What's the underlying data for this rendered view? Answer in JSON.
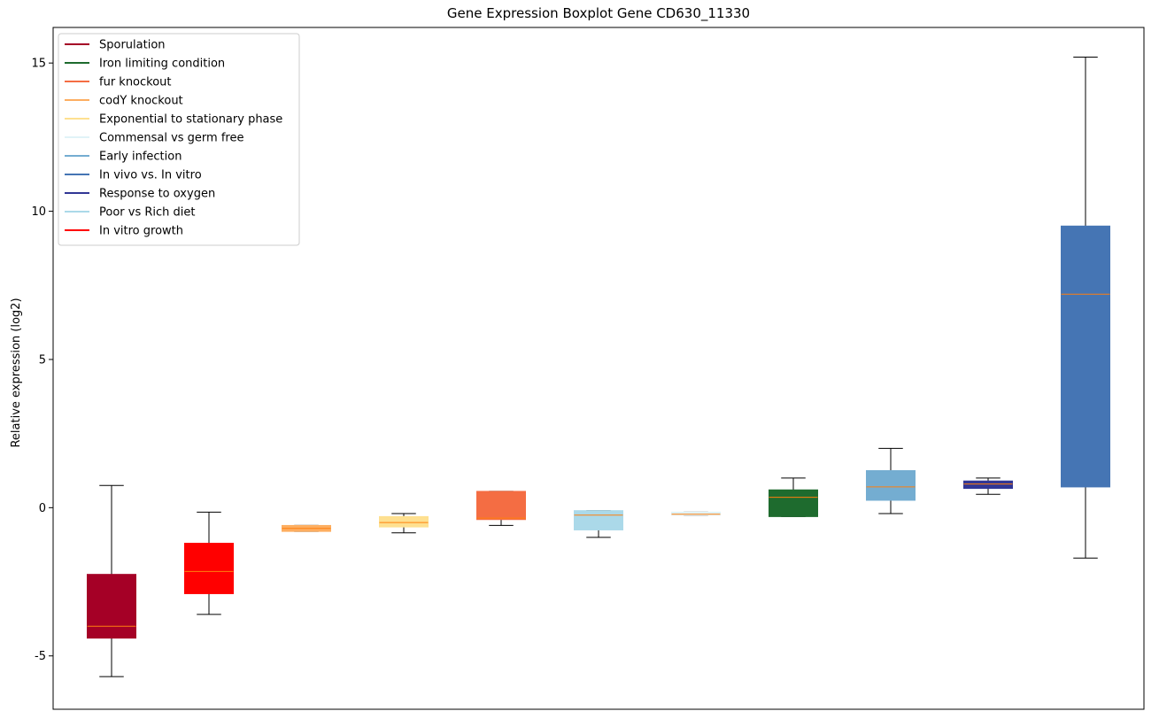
{
  "chart_data": {
    "type": "boxplot",
    "title": "Gene Expression Boxplot Gene CD630_11330",
    "xlabel": "",
    "ylabel": "Relative expression (log2)",
    "ylim": [
      -6.8,
      16.2
    ],
    "yticks": [
      -5,
      0,
      5,
      10,
      15
    ],
    "grid": false,
    "legend_position": "top-left",
    "legend": [
      {
        "label": "Sporulation",
        "color": "#a50026"
      },
      {
        "label": "Iron limiting condition",
        "color": "#1e6b2e"
      },
      {
        "label": "fur knockout",
        "color": "#f46d43"
      },
      {
        "label": "codY knockout",
        "color": "#fdae61"
      },
      {
        "label": "Exponential to stationary phase",
        "color": "#fee090"
      },
      {
        "label": "Commensal vs germ free",
        "color": "#e0f3f8"
      },
      {
        "label": "Early infection",
        "color": "#74add1"
      },
      {
        "label": "In vivo vs. In vitro",
        "color": "#4575b4"
      },
      {
        "label": "Response to oxygen",
        "color": "#313695"
      },
      {
        "label": "Poor vs Rich diet",
        "color": "#abd9e9"
      },
      {
        "label": "In vitro growth",
        "color": "#ff0000"
      }
    ],
    "boxes": [
      {
        "series": "Sporulation",
        "color": "#a50026",
        "whislo": -5.7,
        "q1": -4.4,
        "med": -4.0,
        "q3": -2.25,
        "whishi": 0.75
      },
      {
        "series": "In vitro growth",
        "color": "#ff0000",
        "whislo": -3.6,
        "q1": -2.9,
        "med": -2.15,
        "q3": -1.2,
        "whishi": -0.15
      },
      {
        "series": "codY knockout",
        "color": "#fdae61",
        "whislo": -0.8,
        "q1": -0.8,
        "med": -0.7,
        "q3": -0.6,
        "whishi": -0.6
      },
      {
        "series": "Exponential to stationary phase",
        "color": "#fee090",
        "whislo": -0.85,
        "q1": -0.65,
        "med": -0.5,
        "q3": -0.3,
        "whishi": -0.2
      },
      {
        "series": "fur knockout",
        "color": "#f46d43",
        "whislo": -0.6,
        "q1": -0.4,
        "med": -0.35,
        "q3": 0.55,
        "whishi": 0.55
      },
      {
        "series": "Poor vs Rich diet",
        "color": "#abd9e9",
        "whislo": -1.0,
        "q1": -0.75,
        "med": -0.25,
        "q3": -0.1,
        "whishi": -0.1
      },
      {
        "series": "Commensal vs germ free",
        "color": "#e0f3f8",
        "whislo": -0.25,
        "q1": -0.25,
        "med": -0.22,
        "q3": -0.15,
        "whishi": -0.15
      },
      {
        "series": "Iron limiting condition",
        "color": "#1e6b2e",
        "whislo": -0.3,
        "q1": -0.3,
        "med": 0.35,
        "q3": 0.6,
        "whishi": 1.0
      },
      {
        "series": "Early infection",
        "color": "#74add1",
        "whislo": -0.2,
        "q1": 0.25,
        "med": 0.7,
        "q3": 1.25,
        "whishi": 2.0
      },
      {
        "series": "Response to oxygen",
        "color": "#313695",
        "whislo": 0.45,
        "q1": 0.65,
        "med": 0.8,
        "q3": 0.9,
        "whishi": 1.0
      },
      {
        "series": "In vivo vs. In vitro",
        "color": "#4575b4",
        "whislo": -1.7,
        "q1": 0.7,
        "med": 7.2,
        "q3": 9.5,
        "whishi": 15.2
      }
    ],
    "median_color": "#ff7f0e",
    "whisker_color": "#000000"
  }
}
